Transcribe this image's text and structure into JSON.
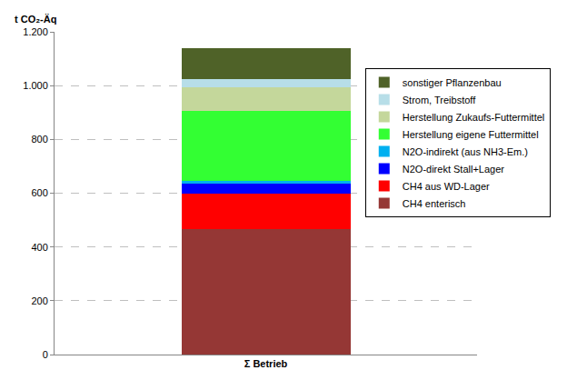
{
  "chart_data": {
    "type": "bar",
    "stacked": true,
    "ylabel": "t CO₂-Äq",
    "categories": [
      "Σ Betrieb"
    ],
    "series": [
      {
        "name": "CH4 enterisch",
        "color": "#953735",
        "values": [
          465
        ]
      },
      {
        "name": "CH4 aus WD-Lager",
        "color": "#ff0000",
        "values": [
          133
        ]
      },
      {
        "name": "N2O-direkt Stall+Lager",
        "color": "#0000ff",
        "values": [
          37
        ]
      },
      {
        "name": "N2O-indirekt (aus NH3-Em.)",
        "color": "#00b0f0",
        "values": [
          10
        ]
      },
      {
        "name": "Herstellung eigene Futtermittel",
        "color": "#33ff33",
        "values": [
          260
        ]
      },
      {
        "name": "Herstellung Zukaufs-Futtermittel",
        "color": "#c4d79b",
        "values": [
          90
        ]
      },
      {
        "name": "Strom, Treibstoff",
        "color": "#b7dee8",
        "values": [
          30
        ]
      },
      {
        "name": "sonstiger Pflanzenbau",
        "color": "#4f6228",
        "values": [
          115
        ]
      }
    ],
    "ylim": [
      0,
      1200
    ],
    "yticks": [
      0,
      200,
      400,
      600,
      800,
      {
        "value": 1000,
        "label": "1.000"
      },
      {
        "value": 1200,
        "label": "1.200"
      }
    ],
    "grid": true,
    "legend": "right"
  }
}
